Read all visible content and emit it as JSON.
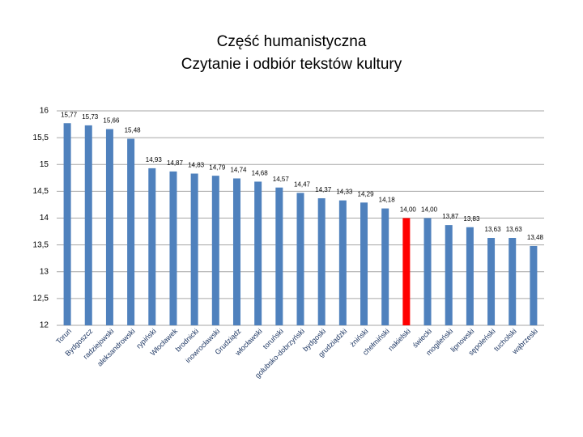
{
  "chart_data": {
    "type": "bar",
    "title": [
      "Część humanistyczna",
      "Czytanie i odbiór tekstów kultury"
    ],
    "categories": [
      "Toruń",
      "Bydgoszcz",
      "radziejowski",
      "aleksandrowski",
      "rypiński",
      "Włocławek",
      "brodnicki",
      "inowrocławski",
      "Grudziądz",
      "włocławski",
      "toruński",
      "golubsko-dobrzyński",
      "bydgoski",
      "grudziądzki",
      "żniński",
      "chełmiński",
      "nakielski",
      "świecki",
      "mogileński",
      "lipnowski",
      "sępoleński",
      "tucholski",
      "wąbrzeski"
    ],
    "values": [
      15.77,
      15.73,
      15.66,
      15.48,
      14.93,
      14.87,
      14.83,
      14.79,
      14.74,
      14.68,
      14.57,
      14.47,
      14.37,
      14.33,
      14.29,
      14.18,
      14,
      14,
      13.87,
      13.83,
      13.63,
      13.63,
      13.48
    ],
    "value_labels": [
      "15,77",
      "15,73",
      "15,66",
      "15,48",
      "14,93",
      "14,87",
      "14,83",
      "14,79",
      "14,74",
      "14,68",
      "14,57",
      "14,47",
      "14,37",
      "14,33",
      "14,29",
      "14,18",
      "14,00",
      "14,00",
      "13,87",
      "13,83",
      "13,63",
      "13,63",
      "13,48"
    ],
    "colors": [
      "#4f81bd",
      "#4f81bd",
      "#4f81bd",
      "#4f81bd",
      "#4f81bd",
      "#4f81bd",
      "#4f81bd",
      "#4f81bd",
      "#4f81bd",
      "#4f81bd",
      "#4f81bd",
      "#4f81bd",
      "#4f81bd",
      "#4f81bd",
      "#4f81bd",
      "#4f81bd",
      "#ff0000",
      "#4f81bd",
      "#4f81bd",
      "#4f81bd",
      "#4f81bd",
      "#4f81bd",
      "#4f81bd"
    ],
    "ylim": [
      12,
      16
    ],
    "yticks": [
      12,
      {
        "value": 12.5,
        "label": "12,5"
      },
      13,
      {
        "value": 13.5,
        "label": "13,5"
      },
      14,
      {
        "value": 14.5,
        "label": "14,5"
      },
      15,
      {
        "value": 15.5,
        "label": "15,5"
      },
      16
    ],
    "grid": true
  }
}
